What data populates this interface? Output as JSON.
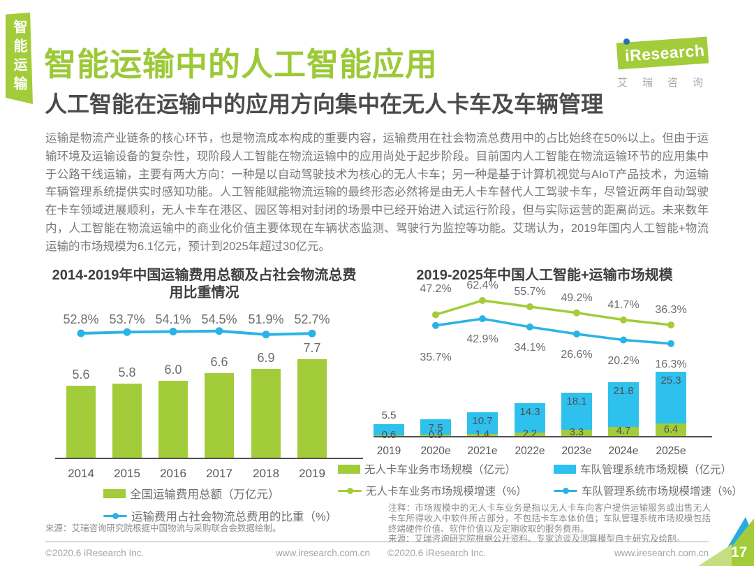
{
  "page": {
    "side_tab": "智能运输",
    "title": "智能运输中的人工智能应用",
    "subtitle": "人工智能在运输中的应用方向集中在无人卡车及车辆管理",
    "body": "运输是物流产业链条的核心环节，也是物流成本构成的重要内容，运输费用在社会物流总费用中的占比始终在50%以上。但由于运输环境及运输设备的复杂性，现阶段人工智能在物流运输中的应用尚处于起步阶段。目前国内人工智能在物流运输环节的应用集中于公路干线运输，主要有两大方向：一种是以自动驾驶技术为核心的无人卡车；另一种是基于计算机视觉与AIoT产品技术，为运输车辆管理系统提供实时感知功能。人工智能赋能物流运输的最终形态必然将是由无人卡车替代人工驾驶卡车，尽管近两年自动驾驶在卡车领域进展顺利，无人卡车在港区、园区等相对封闭的场景中已经开始进入试运行阶段，但与实际运营的距离尚远。未来数年内，人工智能在物流运输中的商业化价值主要体现在车辆状态监测、驾驶行为监控等功能。艾瑞认为，2019年国内人工智能+物流运输的市场规模为6.1亿元，预计到2025年超过30亿元。",
    "logo": {
      "brand": "iResearch",
      "brand_cn": "艾瑞咨询"
    },
    "footer": {
      "copyright": "©2020.6 iResearch Inc.",
      "website": "www.iresearch.com.cn",
      "page_number": "17"
    },
    "colors": {
      "green": "#a2cc39",
      "blue_bar": "#2ec1ee",
      "blue_line": "#2cb3e5"
    }
  },
  "chart_data": [
    {
      "type": "bar",
      "title": "2014-2019年中国运输费用总额及占社会物流总费用比重情况",
      "categories": [
        "2014",
        "2015",
        "2016",
        "2017",
        "2018",
        "2019"
      ],
      "series": [
        {
          "name": "全国运输费用总额（万亿元）",
          "type": "bar",
          "color": "#a2cc39",
          "values": [
            5.6,
            5.8,
            6.0,
            6.6,
            6.9,
            7.7
          ]
        },
        {
          "name": "运输费用占社会物流总费用的比重（%）",
          "type": "line",
          "color": "#2cb3e5",
          "values": [
            52.8,
            53.7,
            54.1,
            54.5,
            51.9,
            52.7
          ]
        }
      ],
      "legend_position": "bottom",
      "grid": false,
      "source": "来源：艾瑞咨询研究院根据中国物流与采购联合会数据绘制。"
    },
    {
      "type": "bar",
      "title": "2019-2025年中国人工智能+运输市场规模",
      "categories": [
        "2019",
        "2020e",
        "2021e",
        "2022e",
        "2023e",
        "2024e",
        "2025e"
      ],
      "series": [
        {
          "name": "无人卡车业务市场规模（亿元）",
          "type": "bar",
          "stacked": true,
          "color": "#a2cc39",
          "values": [
            0.6,
            0.9,
            1.4,
            2.2,
            3.3,
            4.7,
            6.4
          ]
        },
        {
          "name": "车队管理系统市场规模（亿元）",
          "type": "bar",
          "stacked": true,
          "color": "#2ec1ee",
          "values": [
            5.5,
            7.5,
            10.7,
            14.3,
            18.1,
            21.8,
            25.3
          ]
        },
        {
          "name": "无人卡车业务市场规模增速（%）",
          "type": "line",
          "color": "#a2cc39",
          "values": [
            null,
            47.2,
            62.4,
            55.7,
            49.2,
            41.7,
            36.3
          ]
        },
        {
          "name": "车队管理系统市场规模增速（%）",
          "type": "line",
          "color": "#2cb3e5",
          "values": [
            null,
            35.7,
            42.9,
            34.1,
            26.6,
            20.2,
            16.3
          ]
        }
      ],
      "legend_position": "bottom",
      "grid": false,
      "note": "注释：市场规模中的无人卡车业务是指以无人卡车向客户提供运输服务或出售无人卡车所得收入中软件所占部分，不包括卡车本体价值；车队管理系统市场规模包括终端硬件价值、软件价值以及定期收取的服务费用。",
      "source": "来源：艾瑞咨询研究院根据公开资料、专家访谈及测算模型自主研究及绘制。"
    }
  ]
}
